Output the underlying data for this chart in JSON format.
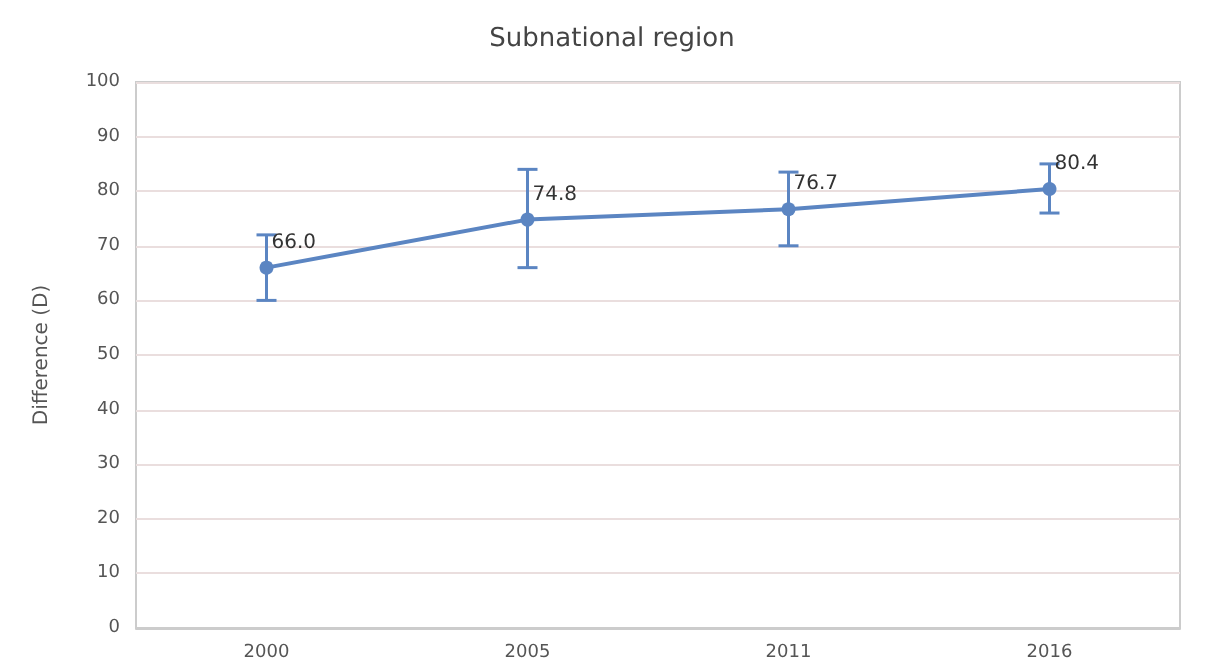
{
  "chart_data": {
    "type": "line",
    "title": "Subnational region",
    "ylabel": "Difference (D)",
    "categories": [
      "2000",
      "2005",
      "2011",
      "2016"
    ],
    "series": [
      {
        "color": "#5b85c2",
        "values": [
          66.0,
          74.8,
          76.7,
          80.4
        ],
        "value_labels": [
          "66.0",
          "74.8",
          "76.7",
          "80.4"
        ],
        "errors": [
          [
            60,
            72
          ],
          [
            66,
            84
          ],
          [
            70,
            83.5
          ],
          [
            76,
            85
          ]
        ]
      }
    ],
    "ylim": [
      0,
      100
    ],
    "yticks": [
      0,
      10,
      20,
      30,
      40,
      50,
      60,
      70,
      80,
      90,
      100
    ],
    "grid": "y",
    "marker": "circle",
    "line_style": "solid"
  }
}
